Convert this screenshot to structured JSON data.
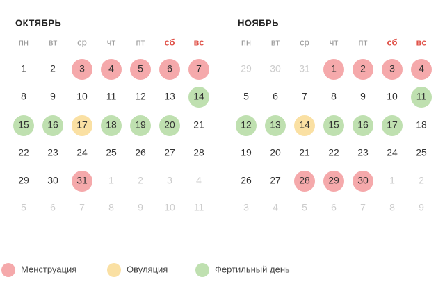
{
  "weekdays": [
    {
      "label": "пн"
    },
    {
      "label": "вт"
    },
    {
      "label": "ср"
    },
    {
      "label": "чт"
    },
    {
      "label": "пт"
    },
    {
      "label": "сб",
      "weekend": true
    },
    {
      "label": "вс",
      "weekend": true
    }
  ],
  "states": {
    "menstruation": "#f5a9ab",
    "ovulation": "#fae0a3",
    "fertile": "#bfe0b0"
  },
  "months": [
    {
      "title": "ОКТЯБРЬ",
      "weeks": [
        [
          1,
          2,
          {
            "day": 3,
            "state": "menstruation"
          },
          {
            "day": 4,
            "state": "menstruation"
          },
          {
            "day": 5,
            "state": "menstruation"
          },
          {
            "day": 6,
            "state": "menstruation"
          },
          {
            "day": 7,
            "state": "menstruation"
          }
        ],
        [
          8,
          9,
          10,
          11,
          12,
          13,
          {
            "day": 14,
            "state": "fertile"
          }
        ],
        [
          {
            "day": 15,
            "state": "fertile"
          },
          {
            "day": 16,
            "state": "fertile"
          },
          {
            "day": 17,
            "state": "ovulation"
          },
          {
            "day": 18,
            "state": "fertile"
          },
          {
            "day": 19,
            "state": "fertile"
          },
          {
            "day": 20,
            "state": "fertile"
          },
          21
        ],
        [
          22,
          23,
          24,
          25,
          26,
          27,
          28
        ],
        [
          29,
          30,
          {
            "day": 31,
            "state": "menstruation"
          },
          {
            "day": 1,
            "state": "other-month"
          },
          {
            "day": 2,
            "state": "other-month"
          },
          {
            "day": 3,
            "state": "other-month"
          },
          {
            "day": 4,
            "state": "other-month"
          }
        ],
        [
          {
            "day": 5,
            "state": "other-month"
          },
          {
            "day": 6,
            "state": "other-month"
          },
          {
            "day": 7,
            "state": "other-month"
          },
          {
            "day": 8,
            "state": "other-month"
          },
          {
            "day": 9,
            "state": "other-month"
          },
          {
            "day": 10,
            "state": "other-month"
          },
          {
            "day": 11,
            "state": "other-month"
          }
        ]
      ]
    },
    {
      "title": "НОЯБРЬ",
      "weeks": [
        [
          {
            "day": 29,
            "state": "other-month"
          },
          {
            "day": 30,
            "state": "other-month"
          },
          {
            "day": 31,
            "state": "other-month"
          },
          {
            "day": 1,
            "state": "menstruation"
          },
          {
            "day": 2,
            "state": "menstruation"
          },
          {
            "day": 3,
            "state": "menstruation"
          },
          {
            "day": 4,
            "state": "menstruation"
          }
        ],
        [
          5,
          6,
          7,
          8,
          9,
          10,
          {
            "day": 11,
            "state": "fertile"
          }
        ],
        [
          {
            "day": 12,
            "state": "fertile"
          },
          {
            "day": 13,
            "state": "fertile"
          },
          {
            "day": 14,
            "state": "ovulation"
          },
          {
            "day": 15,
            "state": "fertile"
          },
          {
            "day": 16,
            "state": "fertile"
          },
          {
            "day": 17,
            "state": "fertile"
          },
          18
        ],
        [
          19,
          20,
          21,
          22,
          23,
          24,
          25
        ],
        [
          26,
          27,
          {
            "day": 28,
            "state": "menstruation"
          },
          {
            "day": 29,
            "state": "menstruation"
          },
          {
            "day": 30,
            "state": "menstruation"
          },
          {
            "day": 1,
            "state": "other-month"
          },
          {
            "day": 2,
            "state": "other-month"
          }
        ],
        [
          {
            "day": 3,
            "state": "other-month"
          },
          {
            "day": 4,
            "state": "other-month"
          },
          {
            "day": 5,
            "state": "other-month"
          },
          {
            "day": 6,
            "state": "other-month"
          },
          {
            "day": 7,
            "state": "other-month"
          },
          {
            "day": 8,
            "state": "other-month"
          },
          {
            "day": 9,
            "state": "other-month"
          }
        ]
      ]
    }
  ],
  "legend": [
    {
      "label": "Менструация",
      "state": "menstruation"
    },
    {
      "label": "Овуляция",
      "state": "ovulation"
    },
    {
      "label": "Фертильный день",
      "state": "fertile"
    }
  ]
}
